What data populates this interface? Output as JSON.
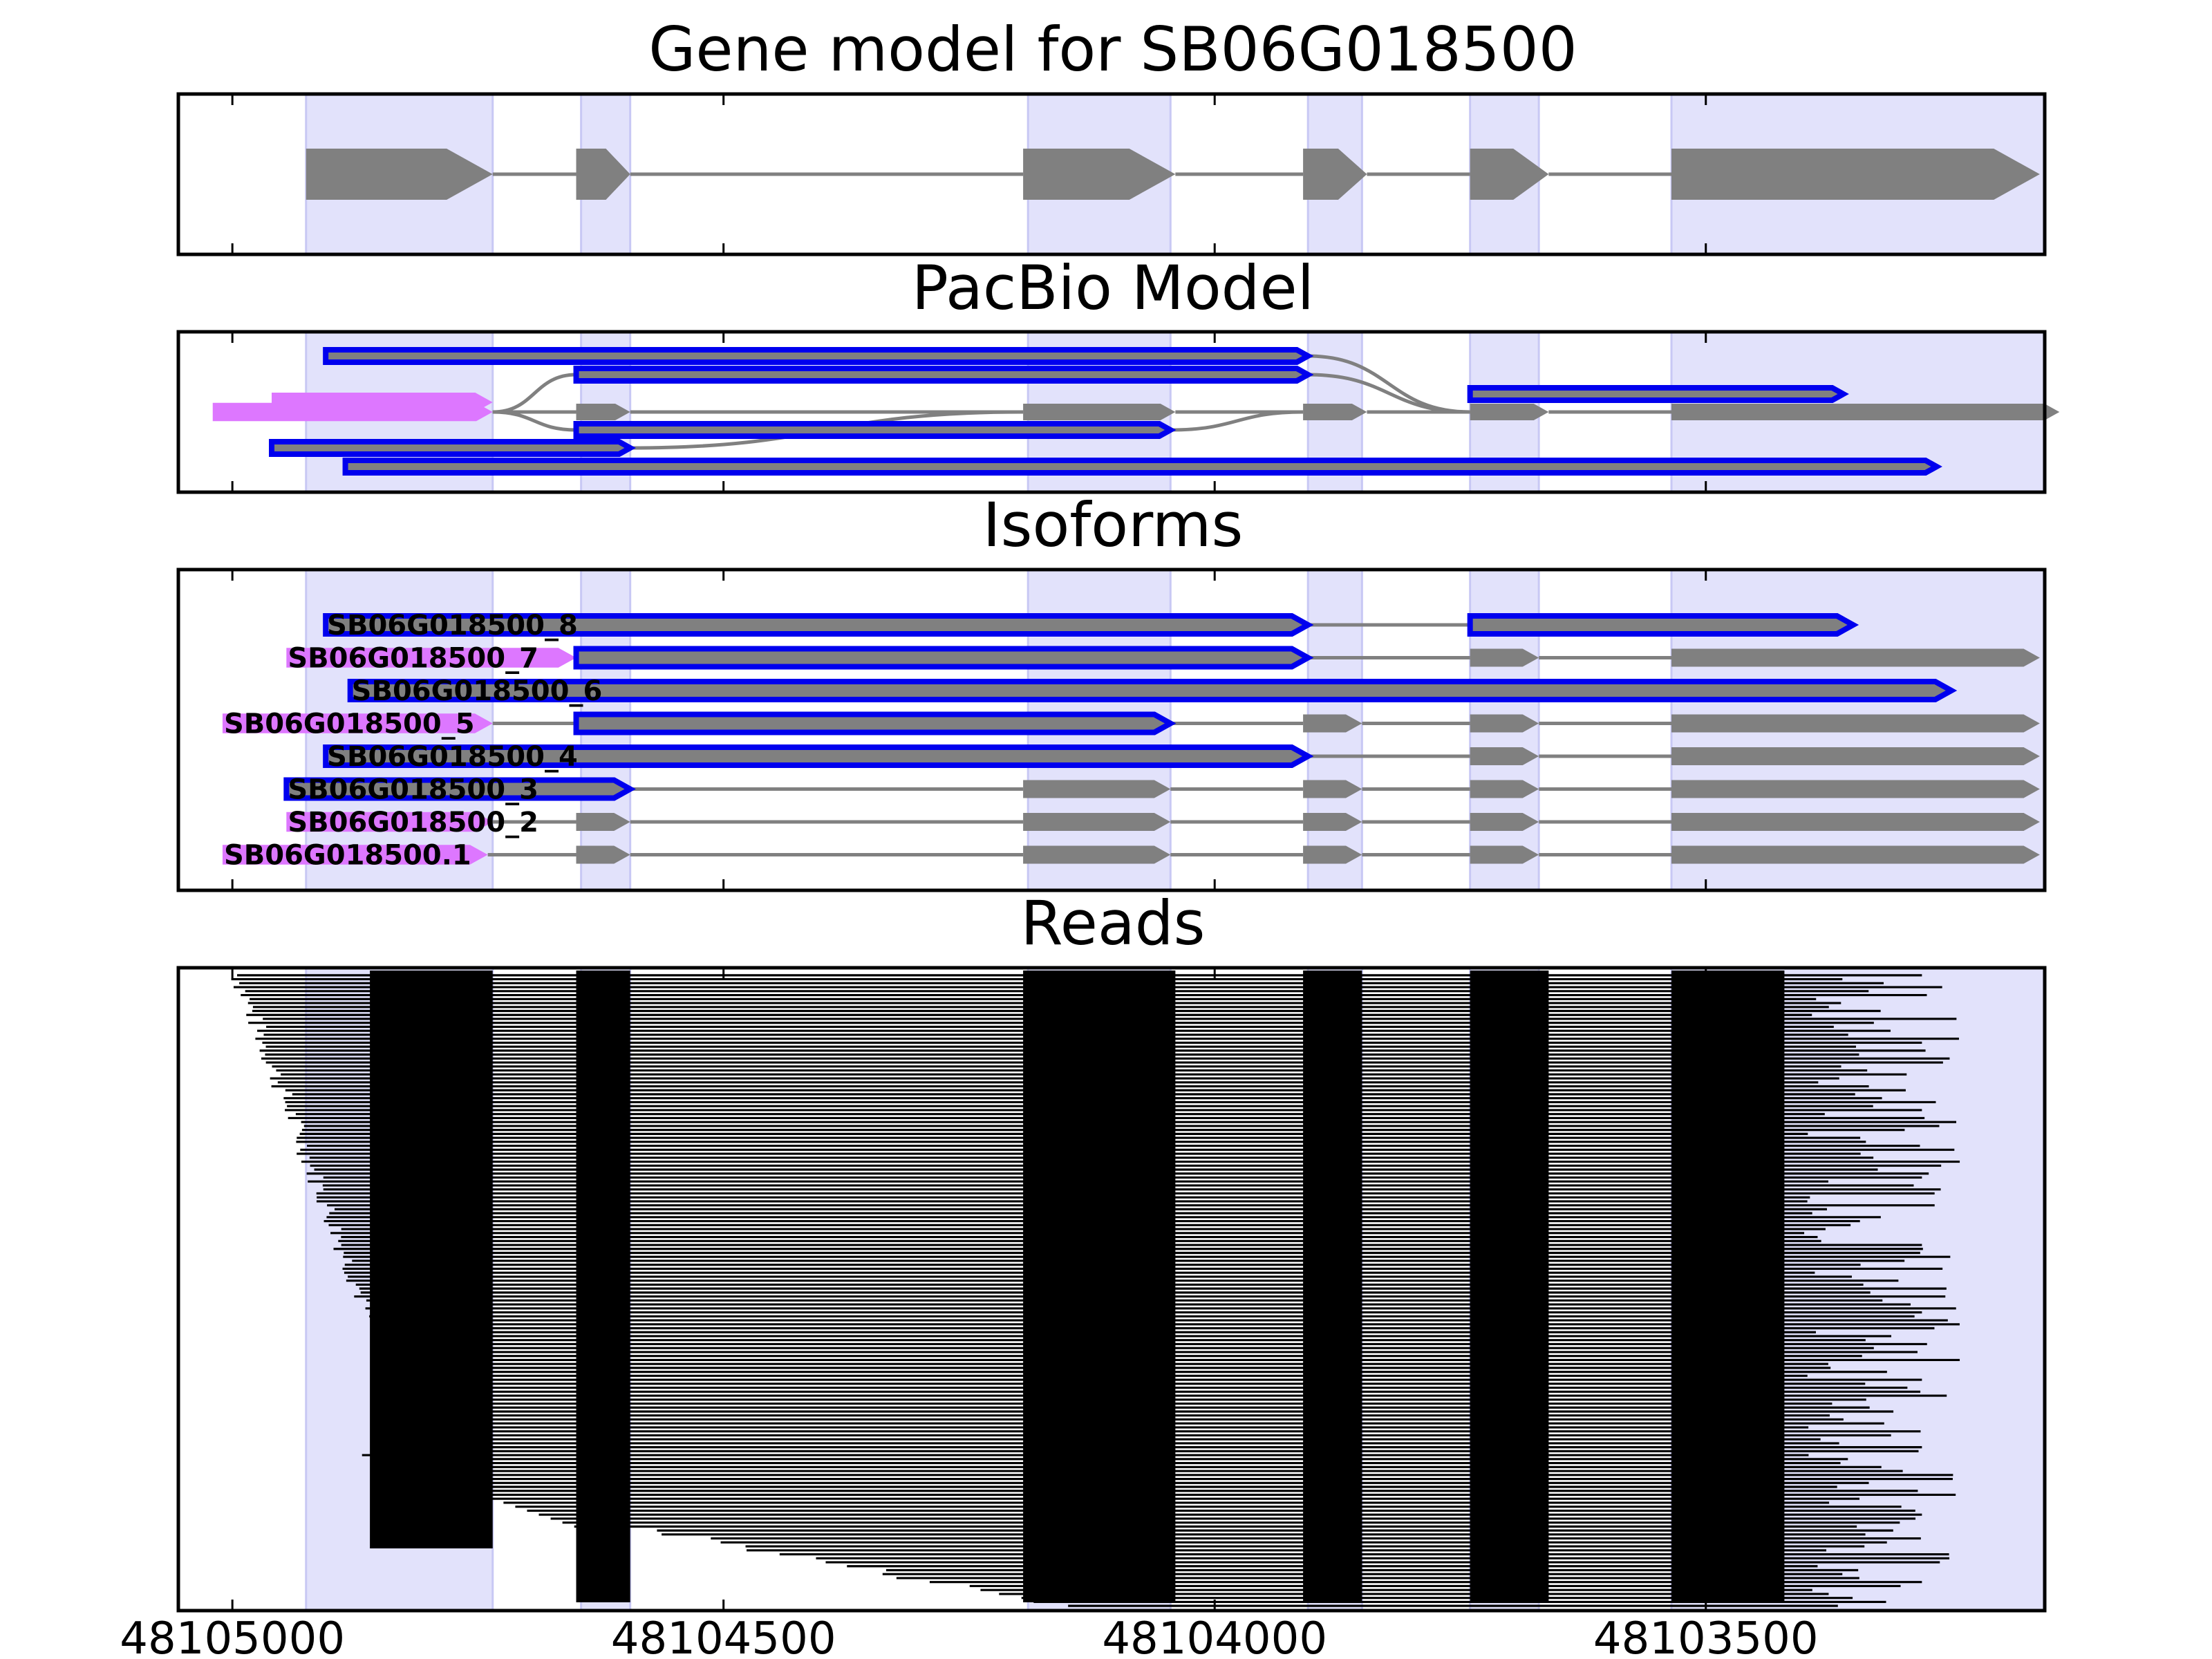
{
  "chart_data": {
    "type": "gene-structure",
    "x_axis": {
      "min": 48105055,
      "max": 48103155,
      "ticks": [
        48105000,
        48104500,
        48104000,
        48103500
      ]
    },
    "exon_shading": [
      [
        48104925,
        48104735
      ],
      [
        48104645,
        48104595
      ],
      [
        48104190,
        48104045
      ],
      [
        48103905,
        48103850
      ],
      [
        48103740,
        48103670
      ],
      [
        48103535,
        48103155
      ]
    ],
    "colors": {
      "shade": "#e2e2fb",
      "gene": "#808080",
      "pacbio": "#0000ee",
      "utr": "#dd77ff",
      "read": "#000000"
    },
    "panels": [
      {
        "title": "Gene model for SB06G018500",
        "rows": [
          {
            "strands": [
              {
                "color": "gene",
                "exons": [
                  [
                    48104925,
                    48104735
                  ],
                  [
                    48104650,
                    48104595
                  ],
                  [
                    48104195,
                    48104040
                  ],
                  [
                    48103910,
                    48103845
                  ],
                  [
                    48103740,
                    48103660
                  ],
                  [
                    48103535,
                    48103160
                  ]
                ]
              }
            ]
          }
        ]
      },
      {
        "title": "PacBio Model",
        "rows": [
          {
            "strands": [
              {
                "color": "pacbio",
                "outline": true,
                "exons": [
                  [
                    48104905,
                    48103905
                  ]
                ]
              }
            ]
          },
          {
            "strands": [
              {
                "color": "pacbio",
                "outline": true,
                "exons": [
                  [
                    48104650,
                    48103905
                  ]
                ]
              }
            ]
          },
          {
            "strands": [
              {
                "color": "pacbio",
                "outline": true,
                "exons": [
                  [
                    48103740,
                    48103360
                  ]
                ]
              }
            ]
          },
          {
            "strands": [
              {
                "color": "utr",
                "exons": [
                  [
                    48105020,
                    48104735
                  ]
                ]
              },
              {
                "color": "gene",
                "exons": [
                  [
                    48104650,
                    48104595
                  ],
                  [
                    48104195,
                    48104040
                  ],
                  [
                    48103910,
                    48103845
                  ],
                  [
                    48103740,
                    48103660
                  ],
                  [
                    48103535,
                    48103140
                  ]
                ]
              }
            ]
          },
          {
            "strands": [
              {
                "color": "pacbio",
                "outline": true,
                "exons": [
                  [
                    48104650,
                    48104045
                  ]
                ]
              }
            ]
          },
          {
            "strands": [
              {
                "color": "pacbio",
                "outline": true,
                "exons": [
                  [
                    48104960,
                    48104595
                  ]
                ]
              }
            ]
          },
          {
            "strands": [
              {
                "color": "pacbio",
                "outline": true,
                "exons": [
                  [
                    48104885,
                    48103265
                  ]
                ]
              }
            ]
          }
        ]
      },
      {
        "title": "Isoforms",
        "rows": [
          {
            "label": "SB06G018500_8",
            "label_x": 48104905,
            "strands": [
              {
                "color": "pacbio",
                "outline": true,
                "exons": [
                  [
                    48104905,
                    48103905
                  ],
                  [
                    48103740,
                    48103350
                  ]
                ]
              }
            ]
          },
          {
            "label": "SB06G018500_7",
            "label_x": 48104945,
            "strands": [
              {
                "color": "utr",
                "exons": [
                  [
                    48104945,
                    48104650
                  ]
                ]
              },
              {
                "color": "pacbio",
                "outline": true,
                "exons": [
                  [
                    48104650,
                    48103905
                  ]
                ]
              },
              {
                "color": "gene",
                "exons": [
                  [
                    48103740,
                    48103670
                  ],
                  [
                    48103535,
                    48103160
                  ]
                ]
              }
            ]
          },
          {
            "label": "SB06G018500_6",
            "label_x": 48104880,
            "strands": [
              {
                "color": "pacbio",
                "outline": true,
                "exons": [
                  [
                    48104880,
                    48103250
                  ]
                ]
              }
            ]
          },
          {
            "label": "SB06G018500_5",
            "label_x": 48105010,
            "strands": [
              {
                "color": "utr",
                "exons": [
                  [
                    48105010,
                    48104735
                  ]
                ]
              },
              {
                "color": "pacbio",
                "outline": true,
                "exons": [
                  [
                    48104650,
                    48104045
                  ]
                ]
              },
              {
                "color": "gene",
                "exons": [
                  [
                    48103910,
                    48103850
                  ],
                  [
                    48103740,
                    48103670
                  ],
                  [
                    48103535,
                    48103160
                  ]
                ]
              }
            ]
          },
          {
            "label": "SB06G018500_4",
            "label_x": 48104905,
            "strands": [
              {
                "color": "pacbio",
                "outline": true,
                "exons": [
                  [
                    48104905,
                    48103905
                  ]
                ]
              },
              {
                "color": "gene",
                "exons": [
                  [
                    48103740,
                    48103670
                  ],
                  [
                    48103535,
                    48103160
                  ]
                ]
              }
            ]
          },
          {
            "label": "SB06G018500_3",
            "label_x": 48104945,
            "strands": [
              {
                "color": "pacbio",
                "outline": true,
                "exons": [
                  [
                    48104945,
                    48104595
                  ]
                ]
              },
              {
                "color": "gene",
                "exons": [
                  [
                    48104195,
                    48104045
                  ],
                  [
                    48103910,
                    48103850
                  ],
                  [
                    48103740,
                    48103670
                  ],
                  [
                    48103535,
                    48103160
                  ]
                ]
              }
            ]
          },
          {
            "label": "SB06G018500_2",
            "label_x": 48104945,
            "strands": [
              {
                "color": "utr",
                "exons": [
                  [
                    48104945,
                    48104735
                  ]
                ]
              },
              {
                "color": "gene",
                "exons": [
                  [
                    48104650,
                    48104595
                  ],
                  [
                    48104195,
                    48104045
                  ],
                  [
                    48103910,
                    48103850
                  ],
                  [
                    48103740,
                    48103670
                  ],
                  [
                    48103535,
                    48103160
                  ]
                ]
              }
            ]
          },
          {
            "label": "SB06G018500.1",
            "label_x": 48105010,
            "strands": [
              {
                "color": "utr",
                "exons": [
                  [
                    48105010,
                    48104740
                  ]
                ]
              },
              {
                "color": "gene",
                "exons": [
                  [
                    48104650,
                    48104595
                  ],
                  [
                    48104195,
                    48104045
                  ],
                  [
                    48103910,
                    48103850
                  ],
                  [
                    48103740,
                    48103670
                  ],
                  [
                    48103535,
                    48103160
                  ]
                ]
              }
            ]
          }
        ]
      },
      {
        "title": "Reads",
        "read_count": 160,
        "exon_blocks": [
          [
            48104650,
            48104595
          ],
          [
            48104195,
            48104040
          ],
          [
            48103910,
            48103850
          ],
          [
            48103740,
            48103660
          ]
        ]
      }
    ]
  }
}
